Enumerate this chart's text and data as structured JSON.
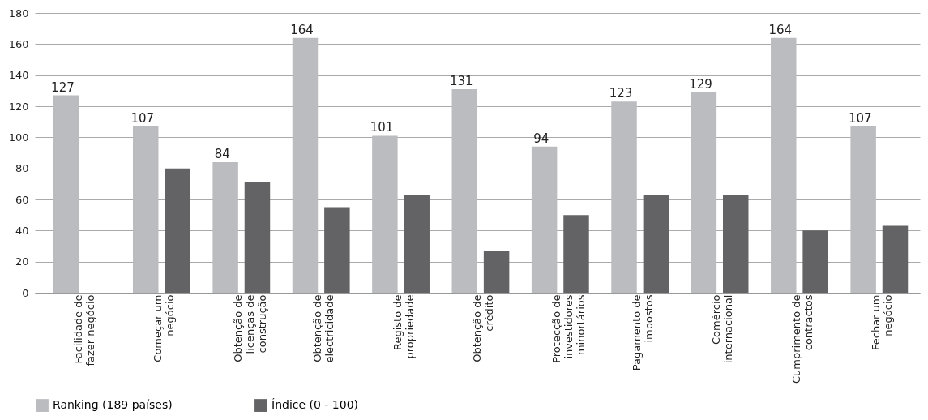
{
  "chart_data": {
    "type": "bar",
    "categories": [
      "Facilidade de fazer negócio",
      "Começar um negócio",
      "Obtenção de licenças de construção",
      "Obtenção de electricidade",
      "Registo de propriedade",
      "Obtenção de crédito",
      "Protecção de investidores minortários",
      "Pagamento de impostos",
      "Comércio internacional",
      "Cumprimento de contractos",
      "Fechar um negócio"
    ],
    "series": [
      {
        "name": "Ranking (189 países)",
        "color": "#bbbcc0",
        "values": [
          127,
          107,
          84,
          164,
          101,
          131,
          94,
          123,
          129,
          164,
          107
        ],
        "value_labels": [
          "127",
          "107",
          "84",
          "164",
          "101",
          "131",
          "94",
          "123",
          "129",
          "164",
          "107"
        ]
      },
      {
        "name": "Índice (0 - 100)",
        "color": "#636365",
        "values": [
          null,
          80,
          71,
          55,
          63,
          27,
          50,
          63,
          63,
          40,
          43
        ]
      }
    ],
    "ylim": [
      0,
      180
    ],
    "yticks": [
      0,
      20,
      40,
      60,
      80,
      100,
      120,
      140,
      160,
      180
    ],
    "grid": "y",
    "legend": "bottom"
  }
}
